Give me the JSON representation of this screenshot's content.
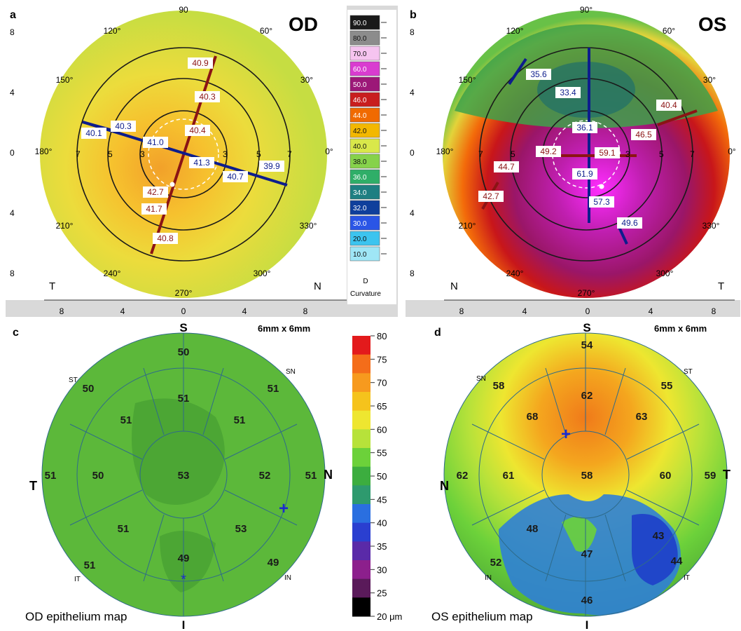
{
  "panel_a": {
    "letter": "a",
    "eye": "OD",
    "angles": [
      "90",
      "60°",
      "30°",
      "0°",
      "330°",
      "300°",
      "270°",
      "240°",
      "210°",
      "180°",
      "150°",
      "120°"
    ],
    "side_left": "T",
    "side_right": "N",
    "ring_labels": [
      "7",
      "5",
      "3",
      "3",
      "5",
      "7"
    ],
    "y_ticks": [
      "8",
      "4",
      "0",
      "4",
      "8"
    ],
    "x_ticks": [
      "8",
      "4",
      "0",
      "4",
      "8"
    ],
    "values": [
      "40.9",
      "40.3",
      "40.4",
      "41.0",
      "40.3",
      "40.1",
      "41.3",
      "40.7",
      "39.9",
      "42.7",
      "41.7",
      "40.8"
    ]
  },
  "scale": {
    "values": [
      "90.0",
      "80.0",
      "70.0",
      "60.0",
      "50.0",
      "46.0",
      "44.0",
      "42.0",
      "40.0",
      "38.0",
      "36.0",
      "34.0",
      "32.0",
      "30.0",
      "20.0",
      "10.0"
    ],
    "colors": [
      "#1a1a1a",
      "#8c8c8c",
      "#f6c4f0",
      "#d93cd0",
      "#9c1878",
      "#c81e1e",
      "#f06a00",
      "#f3b800",
      "#d9e84a",
      "#86d24a",
      "#2fae68",
      "#1e7f82",
      "#0f3f9c",
      "#2a55e6",
      "#3cc4ef",
      "#9fe6f6"
    ],
    "d_label": "D",
    "title": "Curvature"
  },
  "panel_b": {
    "letter": "b",
    "eye": "OS",
    "angles": [
      "90°",
      "60°",
      "30°",
      "0°",
      "330°",
      "300°",
      "270°",
      "240°",
      "210°",
      "180°",
      "150°",
      "120°"
    ],
    "side_left": "N",
    "side_right": "T",
    "ring_labels": [
      "7",
      "5",
      "3",
      "3",
      "5",
      "7"
    ],
    "y_ticks": [
      "8",
      "4",
      "0",
      "4",
      "8"
    ],
    "x_ticks": [
      "8",
      "4",
      "0",
      "4",
      "8"
    ],
    "values": [
      "35.6",
      "33.4",
      "40.4",
      "36.1",
      "46.5",
      "49.2",
      "59.1",
      "44.7",
      "61.9",
      "42.7",
      "57.3",
      "49.6"
    ]
  },
  "panel_c": {
    "letter": "c",
    "size": "6mm x 6mm",
    "caption": "OD epithelium map",
    "S": "S",
    "I": "I",
    "T": "T",
    "N": "N",
    "ST": "ST",
    "SN": "SN",
    "IT": "IT",
    "IN": "IN",
    "values": [
      "50",
      "50",
      "51",
      "51",
      "51",
      "51",
      "51",
      "50",
      "53",
      "52",
      "51",
      "51",
      "49",
      "53",
      "51",
      "49"
    ]
  },
  "colorbar": {
    "ticks": [
      "80",
      "75",
      "70",
      "65",
      "60",
      "55",
      "50",
      "45",
      "40",
      "35",
      "30",
      "25",
      "20 μm"
    ],
    "colors": [
      "#e31a1c",
      "#f46d1a",
      "#f79a1e",
      "#f5c31c",
      "#eee630",
      "#b7e23a",
      "#6cd13a",
      "#3cad3f",
      "#2e9a6e",
      "#2a6fe0",
      "#2a3fd0",
      "#5a2aa8",
      "#8c1f8c",
      "#5a1a5a",
      "#000000"
    ]
  },
  "panel_d": {
    "letter": "d",
    "size": "6mm x 6mm",
    "caption": "OS epithelium map",
    "S": "S",
    "I": "I",
    "N": "N",
    "T": "T",
    "SN": "SN",
    "ST": "ST",
    "IN": "IN",
    "IT": "IT",
    "values": [
      "54",
      "58",
      "62",
      "55",
      "68",
      "63",
      "62",
      "61",
      "58",
      "60",
      "59",
      "48",
      "43",
      "47",
      "52",
      "44",
      "46"
    ]
  }
}
